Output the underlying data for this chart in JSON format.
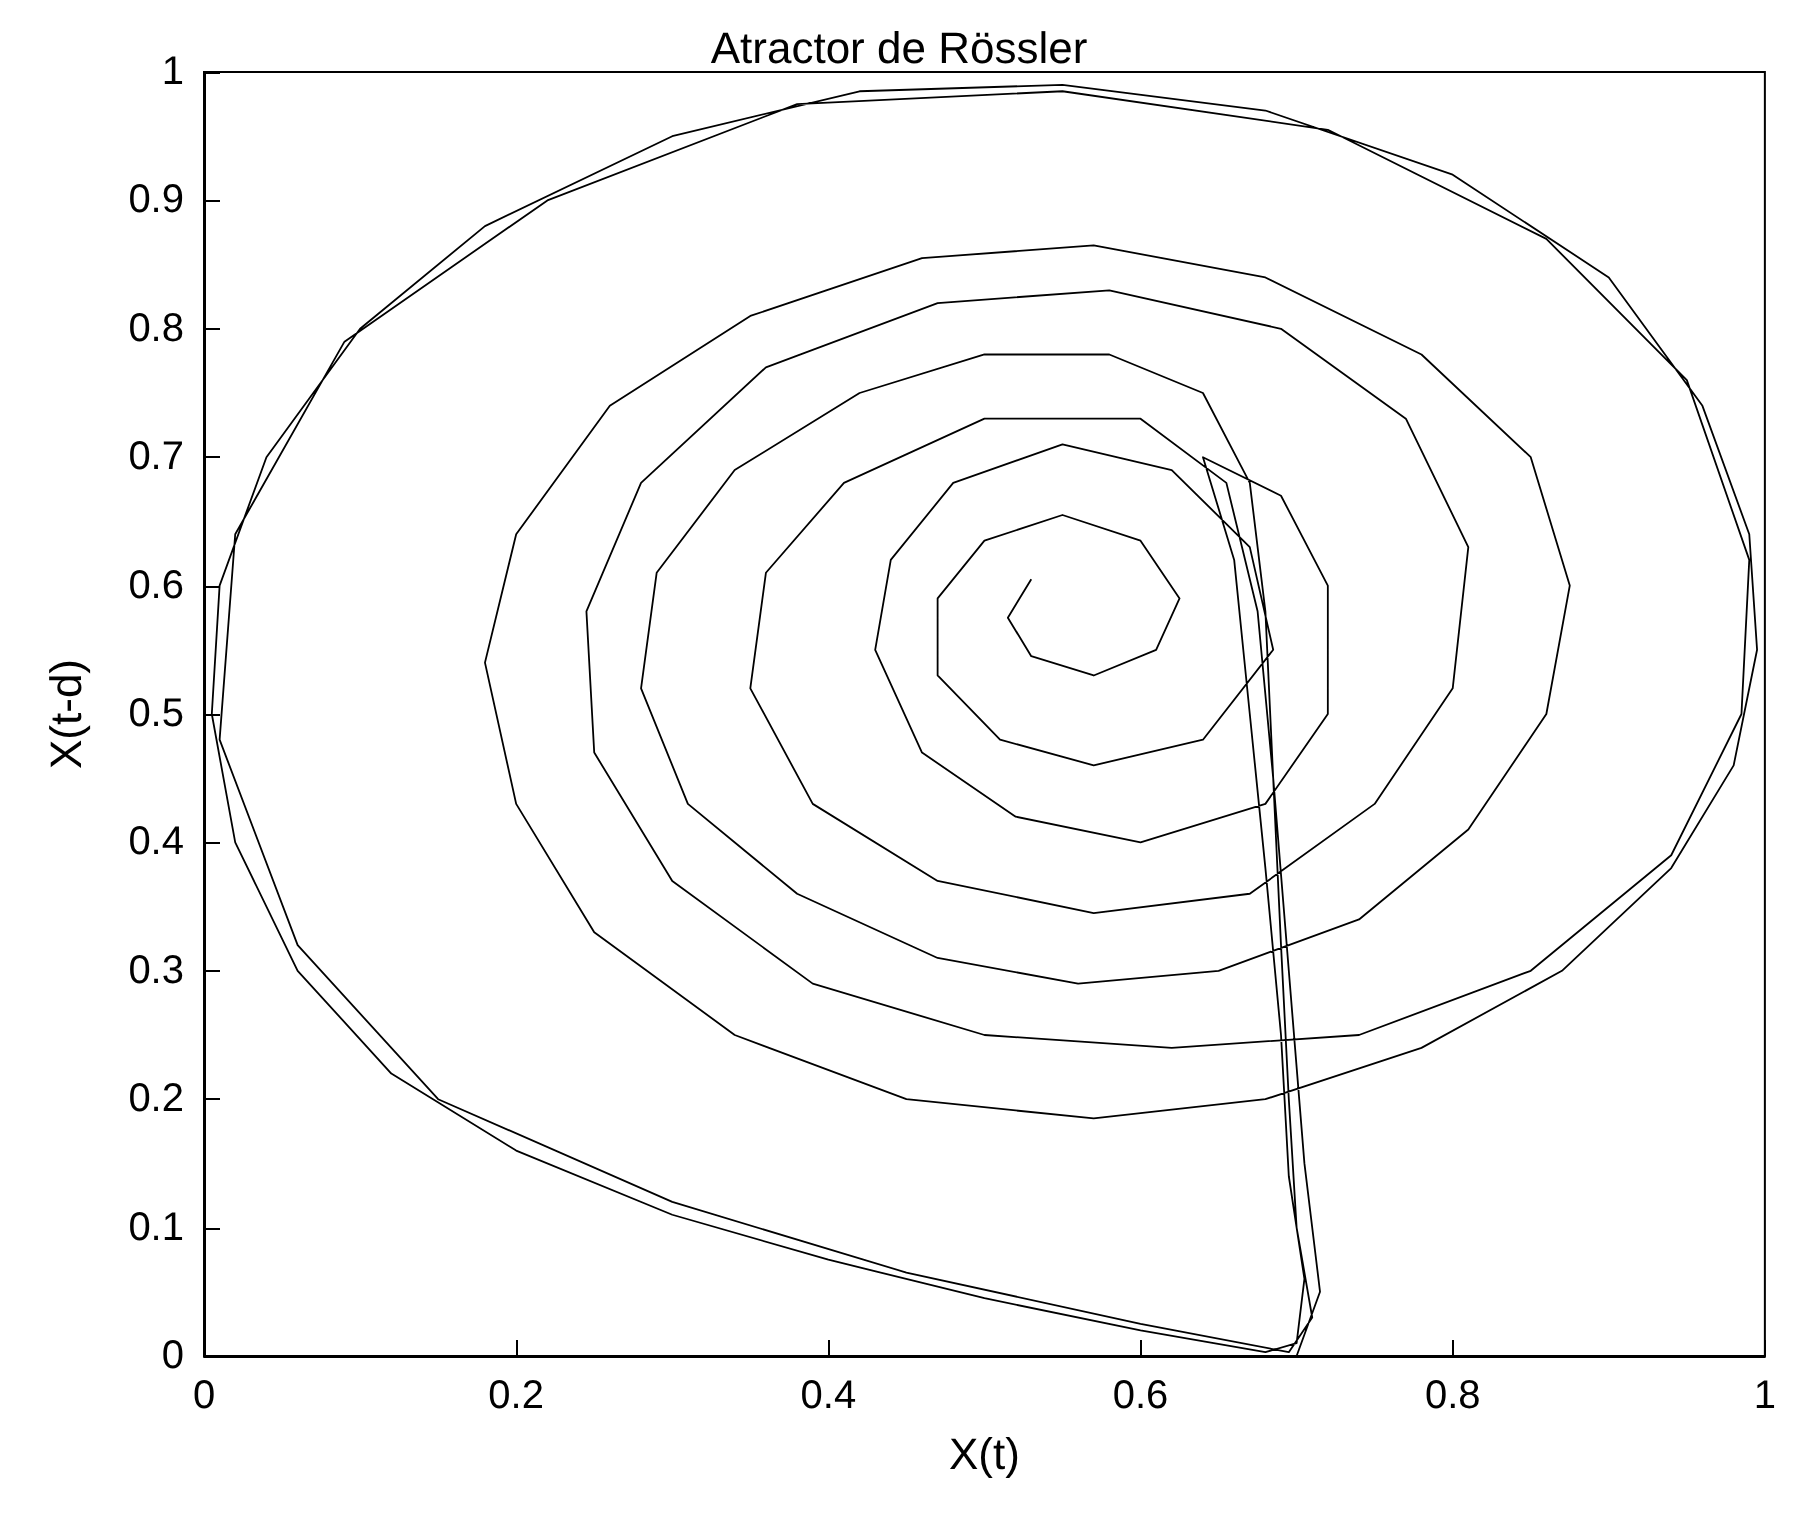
{
  "chart_data": {
    "type": "line",
    "title": "Atractor de Rössler",
    "xlabel": "X(t)",
    "ylabel": "X(t-d)",
    "xlim": [
      0,
      1
    ],
    "ylim": [
      0,
      1
    ],
    "xticks": [
      0,
      0.2,
      0.4,
      0.6,
      0.8,
      1
    ],
    "yticks": [
      0,
      0.1,
      0.2,
      0.3,
      0.4,
      0.5,
      0.6,
      0.7,
      0.8,
      0.9,
      1
    ],
    "grid": false,
    "marker": "none",
    "line_style": "solid",
    "series": [
      {
        "color": "#000000",
        "x": [
          0.53,
          0.515,
          0.53,
          0.57,
          0.61,
          0.625,
          0.6,
          0.55,
          0.5,
          0.47,
          0.47,
          0.51,
          0.57,
          0.64,
          0.685,
          0.67,
          0.62,
          0.55,
          0.48,
          0.44,
          0.43,
          0.46,
          0.52,
          0.6,
          0.68,
          0.72,
          0.72,
          0.69,
          0.64,
          0.66,
          0.67,
          0.68,
          0.69,
          0.695,
          0.705,
          0.7,
          0.68,
          0.6,
          0.5,
          0.4,
          0.3,
          0.2,
          0.12,
          0.06,
          0.02,
          0.005,
          0.01,
          0.04,
          0.1,
          0.18,
          0.3,
          0.42,
          0.55,
          0.68,
          0.8,
          0.9,
          0.96,
          0.99,
          0.995,
          0.98,
          0.94,
          0.87,
          0.78,
          0.68,
          0.57,
          0.45,
          0.34,
          0.25,
          0.2,
          0.18,
          0.2,
          0.26,
          0.35,
          0.46,
          0.57,
          0.68,
          0.78,
          0.85,
          0.875,
          0.86,
          0.81,
          0.74,
          0.65,
          0.56,
          0.47,
          0.38,
          0.31,
          0.28,
          0.29,
          0.34,
          0.42,
          0.5,
          0.58,
          0.64,
          0.67,
          0.68,
          0.685,
          0.69,
          0.695,
          0.7,
          0.71,
          0.695,
          0.6,
          0.45,
          0.3,
          0.15,
          0.06,
          0.01,
          0.02,
          0.09,
          0.22,
          0.38,
          0.55,
          0.72,
          0.86,
          0.95,
          0.99,
          0.985,
          0.94,
          0.85,
          0.74,
          0.62,
          0.5,
          0.39,
          0.3,
          0.25,
          0.245,
          0.28,
          0.36,
          0.47,
          0.58,
          0.69,
          0.77,
          0.81,
          0.8,
          0.75,
          0.67,
          0.57,
          0.47,
          0.39,
          0.35,
          0.36,
          0.41,
          0.5,
          0.6,
          0.655,
          0.675,
          0.685,
          0.695,
          0.705,
          0.715,
          0.7
        ],
        "values": [
          0.605,
          0.575,
          0.545,
          0.53,
          0.55,
          0.59,
          0.635,
          0.655,
          0.635,
          0.59,
          0.53,
          0.48,
          0.46,
          0.48,
          0.55,
          0.63,
          0.69,
          0.71,
          0.68,
          0.62,
          0.55,
          0.47,
          0.42,
          0.4,
          0.43,
          0.5,
          0.6,
          0.67,
          0.7,
          0.62,
          0.5,
          0.38,
          0.25,
          0.14,
          0.06,
          0.01,
          0.003,
          0.02,
          0.045,
          0.075,
          0.11,
          0.16,
          0.22,
          0.3,
          0.4,
          0.5,
          0.6,
          0.7,
          0.8,
          0.88,
          0.95,
          0.985,
          0.99,
          0.97,
          0.92,
          0.84,
          0.74,
          0.64,
          0.55,
          0.46,
          0.38,
          0.3,
          0.24,
          0.2,
          0.185,
          0.2,
          0.25,
          0.33,
          0.43,
          0.54,
          0.64,
          0.74,
          0.81,
          0.855,
          0.865,
          0.84,
          0.78,
          0.7,
          0.6,
          0.5,
          0.41,
          0.34,
          0.3,
          0.29,
          0.31,
          0.36,
          0.43,
          0.52,
          0.61,
          0.69,
          0.75,
          0.78,
          0.78,
          0.75,
          0.68,
          0.58,
          0.45,
          0.32,
          0.2,
          0.1,
          0.03,
          0.003,
          0.025,
          0.065,
          0.12,
          0.2,
          0.32,
          0.48,
          0.64,
          0.79,
          0.9,
          0.975,
          0.985,
          0.955,
          0.87,
          0.76,
          0.62,
          0.5,
          0.39,
          0.3,
          0.25,
          0.24,
          0.25,
          0.29,
          0.37,
          0.47,
          0.58,
          0.68,
          0.77,
          0.82,
          0.83,
          0.8,
          0.73,
          0.63,
          0.52,
          0.43,
          0.36,
          0.345,
          0.37,
          0.43,
          0.52,
          0.61,
          0.68,
          0.73,
          0.73,
          0.68,
          0.58,
          0.45,
          0.3,
          0.15,
          0.05,
          0.0
        ]
      }
    ]
  }
}
